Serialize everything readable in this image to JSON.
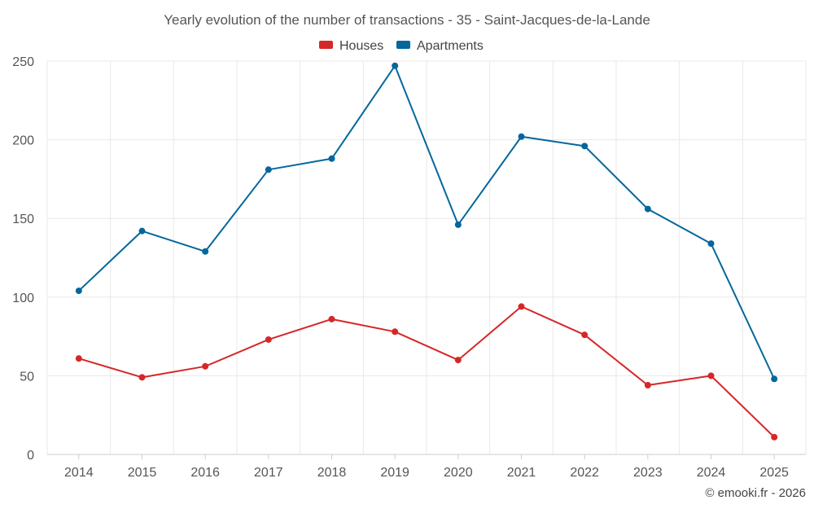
{
  "chart_data": {
    "type": "line",
    "title": "Yearly evolution of the number of transactions - 35 - Saint-Jacques-de-la-Lande",
    "categories": [
      "2014",
      "2015",
      "2016",
      "2017",
      "2018",
      "2019",
      "2020",
      "2021",
      "2022",
      "2023",
      "2024",
      "2025"
    ],
    "series": [
      {
        "name": "Houses",
        "color": "#d62728",
        "values": [
          61,
          49,
          56,
          73,
          86,
          78,
          60,
          94,
          76,
          44,
          50,
          11
        ]
      },
      {
        "name": "Apartments",
        "color": "#04679c",
        "values": [
          104,
          142,
          129,
          181,
          188,
          247,
          146,
          202,
          196,
          156,
          134,
          48
        ]
      }
    ],
    "ylim": [
      0,
      250
    ],
    "yticks": [
      "0",
      "50",
      "100",
      "150",
      "200",
      "250"
    ],
    "xlabel": "",
    "ylabel": "",
    "grid": true,
    "legend": "top-center"
  },
  "credit": "© emooki.fr - 2026"
}
